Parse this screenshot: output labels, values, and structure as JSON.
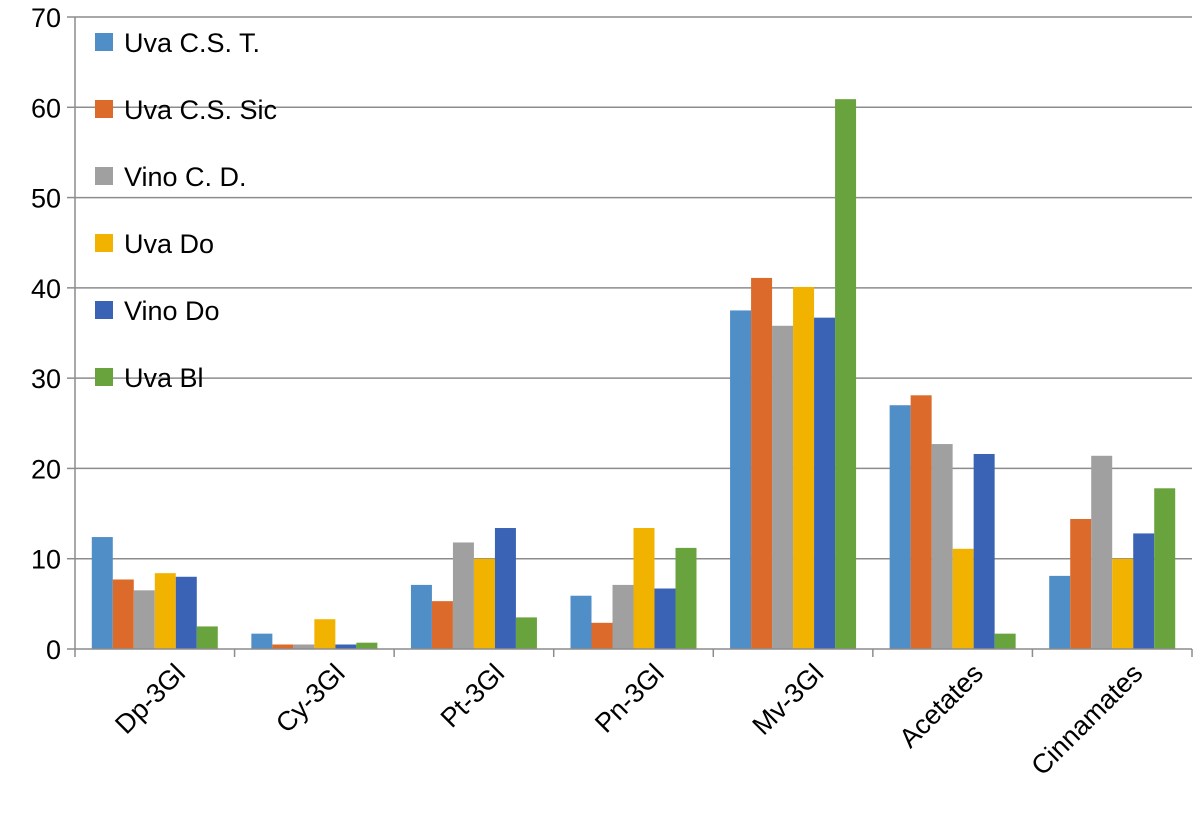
{
  "chart_data": {
    "type": "bar",
    "categories": [
      "Dp-3Gl",
      "Cy-3Gl",
      "Pt-3Gl",
      "Pn-3Gl",
      "Mv-3Gl",
      "Acetates",
      "Cinnamates"
    ],
    "series": [
      {
        "name": "Uva C.S. T.",
        "color": "#4f8ec7",
        "values": [
          12.4,
          1.7,
          7.1,
          5.9,
          37.5,
          27.0,
          8.1
        ]
      },
      {
        "name": "Uva C.S. Sic",
        "color": "#dc6a2b",
        "values": [
          7.7,
          0.5,
          5.3,
          2.9,
          41.1,
          28.1,
          14.4
        ]
      },
      {
        "name": "Vino C. D.",
        "color": "#a0a0a0",
        "values": [
          6.5,
          0.5,
          11.8,
          7.1,
          35.8,
          22.7,
          21.4
        ]
      },
      {
        "name": "Uva Do",
        "color": "#f2b300",
        "values": [
          8.4,
          3.3,
          10.0,
          13.4,
          40.1,
          11.1,
          10.0
        ]
      },
      {
        "name": "Vino Do",
        "color": "#3b63b5",
        "values": [
          8.0,
          0.5,
          13.4,
          6.7,
          36.7,
          21.6,
          12.8
        ]
      },
      {
        "name": "Uva Bl",
        "color": "#69a33d",
        "values": [
          2.5,
          0.7,
          3.5,
          11.2,
          60.9,
          1.7,
          17.8
        ]
      }
    ],
    "ylim": [
      0,
      70
    ],
    "yticks": [
      "0",
      "10",
      "20",
      "30",
      "40",
      "50",
      "60",
      "70"
    ],
    "grid": true,
    "legend_position": "top-left",
    "title": "",
    "xlabel": "",
    "ylabel": ""
  }
}
